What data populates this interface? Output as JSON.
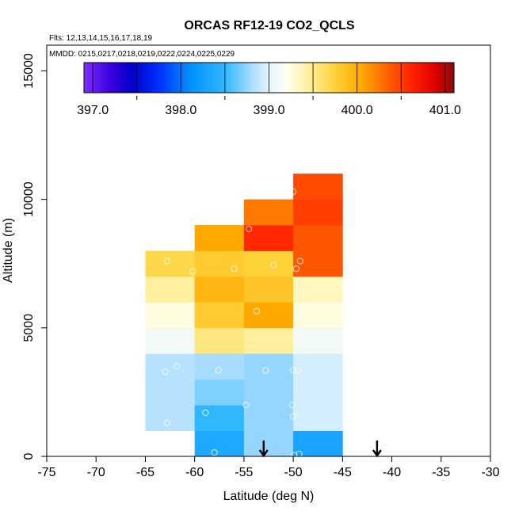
{
  "chart_data": {
    "type": "heatmap",
    "title": "ORCAS RF12-19 CO2_QCLS",
    "flights_label": "Flts: 12,13,14,15,16,17,18,19",
    "dates_label": "MMDD: 0215,0217,0218,0219,0222,0224,0225,0229",
    "xlabel": "Latitude (deg N)",
    "ylabel": "Altitude (m)",
    "xlim": [
      -75,
      -30
    ],
    "ylim": [
      0,
      16000
    ],
    "x_ticks": [
      -75,
      -70,
      -65,
      -60,
      -55,
      -50,
      -45,
      -40,
      -35,
      -30
    ],
    "x_tick_labels": [
      "-75",
      "-70",
      "-65",
      "-60",
      "-55",
      "-50",
      "-45",
      "-40",
      "-35",
      "-30"
    ],
    "y_ticks": [
      0,
      5000,
      10000,
      15000
    ],
    "y_tick_labels": [
      "0",
      "5000",
      "10000",
      "15000"
    ],
    "colorbar": {
      "range": [
        396.9,
        401.1
      ],
      "ticks": [
        397.0,
        398.0,
        399.0,
        400.0,
        401.0
      ],
      "tick_labels": [
        "397.0",
        "398.0",
        "399.0",
        "400.0",
        "401.0"
      ],
      "stops": [
        {
          "v": 396.9,
          "c": "#7f2fff"
        },
        {
          "v": 397.2,
          "c": "#3a00e0"
        },
        {
          "v": 397.45,
          "c": "#0000c8"
        },
        {
          "v": 397.75,
          "c": "#0030ff"
        },
        {
          "v": 398.1,
          "c": "#0090ff"
        },
        {
          "v": 398.5,
          "c": "#30b8ff"
        },
        {
          "v": 398.8,
          "c": "#a8dcff"
        },
        {
          "v": 399.0,
          "c": "#e4f4ff"
        },
        {
          "v": 399.2,
          "c": "#fffff0"
        },
        {
          "v": 399.45,
          "c": "#fff0a0"
        },
        {
          "v": 399.75,
          "c": "#ffd23a"
        },
        {
          "v": 400.05,
          "c": "#ffa800"
        },
        {
          "v": 400.35,
          "c": "#ff6200"
        },
        {
          "v": 400.65,
          "c": "#ff1c00"
        },
        {
          "v": 400.9,
          "c": "#d80000"
        },
        {
          "v": 401.1,
          "c": "#8b0c0c"
        }
      ]
    },
    "lat_bin_width": 5,
    "alt_bin_height": 1000,
    "cells": [
      {
        "lat0": -65,
        "alt0": 1000,
        "value": 398.85
      },
      {
        "lat0": -65,
        "alt0": 2000,
        "value": 398.85
      },
      {
        "lat0": -65,
        "alt0": 3000,
        "value": 398.85
      },
      {
        "lat0": -65,
        "alt0": 4000,
        "value": 399.1
      },
      {
        "lat0": -65,
        "alt0": 5000,
        "value": 399.25
      },
      {
        "lat0": -65,
        "alt0": 6000,
        "value": 399.45
      },
      {
        "lat0": -65,
        "alt0": 7000,
        "value": 399.7
      },
      {
        "lat0": -60,
        "alt0": 0,
        "value": 398.35
      },
      {
        "lat0": -60,
        "alt0": 1000,
        "value": 398.5
      },
      {
        "lat0": -60,
        "alt0": 2000,
        "value": 398.7
      },
      {
        "lat0": -60,
        "alt0": 3000,
        "value": 398.8
      },
      {
        "lat0": -60,
        "alt0": 4000,
        "value": 399.55
      },
      {
        "lat0": -60,
        "alt0": 5000,
        "value": 399.8
      },
      {
        "lat0": -60,
        "alt0": 6000,
        "value": 399.95
      },
      {
        "lat0": -60,
        "alt0": 7000,
        "value": 399.8
      },
      {
        "lat0": -60,
        "alt0": 8000,
        "value": 400.05
      },
      {
        "lat0": -55,
        "alt0": 0,
        "value": 398.75
      },
      {
        "lat0": -55,
        "alt0": 1000,
        "value": 398.75
      },
      {
        "lat0": -55,
        "alt0": 2000,
        "value": 398.75
      },
      {
        "lat0": -55,
        "alt0": 3000,
        "value": 398.75
      },
      {
        "lat0": -55,
        "alt0": 4000,
        "value": 399.45
      },
      {
        "lat0": -55,
        "alt0": 5000,
        "value": 400.05
      },
      {
        "lat0": -55,
        "alt0": 6000,
        "value": 399.85
      },
      {
        "lat0": -55,
        "alt0": 7000,
        "value": 399.75
      },
      {
        "lat0": -55,
        "alt0": 8000,
        "value": 400.6
      },
      {
        "lat0": -55,
        "alt0": 9000,
        "value": 400.25
      },
      {
        "lat0": -50,
        "alt0": 0,
        "value": 398.3
      },
      {
        "lat0": -50,
        "alt0": 1000,
        "value": 398.95
      },
      {
        "lat0": -50,
        "alt0": 2000,
        "value": 398.95
      },
      {
        "lat0": -50,
        "alt0": 3000,
        "value": 398.95
      },
      {
        "lat0": -50,
        "alt0": 4000,
        "value": 399.1
      },
      {
        "lat0": -50,
        "alt0": 5000,
        "value": 399.25
      },
      {
        "lat0": -50,
        "alt0": 6000,
        "value": 399.35
      },
      {
        "lat0": -50,
        "alt0": 7000,
        "value": 400.4
      },
      {
        "lat0": -50,
        "alt0": 8000,
        "value": 400.4
      },
      {
        "lat0": -50,
        "alt0": 9000,
        "value": 400.5
      },
      {
        "lat0": -50,
        "alt0": 10000,
        "value": 400.45
      }
    ],
    "points": [
      {
        "lat": -62.8,
        "alt": 7600
      },
      {
        "lat": -60.2,
        "alt": 7200
      },
      {
        "lat": -56.0,
        "alt": 7300
      },
      {
        "lat": -52.0,
        "alt": 7450
      },
      {
        "lat": -49.7,
        "alt": 7300
      },
      {
        "lat": -49.3,
        "alt": 7600
      },
      {
        "lat": -54.5,
        "alt": 8850
      },
      {
        "lat": -50.0,
        "alt": 10300
      },
      {
        "lat": -49.3,
        "alt": 6350
      },
      {
        "lat": -53.7,
        "alt": 5650
      },
      {
        "lat": -63.0,
        "alt": 3300
      },
      {
        "lat": -61.8,
        "alt": 3500
      },
      {
        "lat": -57.6,
        "alt": 3350
      },
      {
        "lat": -52.8,
        "alt": 3350
      },
      {
        "lat": -50.0,
        "alt": 3350
      },
      {
        "lat": -49.5,
        "alt": 3350
      },
      {
        "lat": -58.9,
        "alt": 1700
      },
      {
        "lat": -54.8,
        "alt": 2000
      },
      {
        "lat": -50.1,
        "alt": 2000
      },
      {
        "lat": -50.0,
        "alt": 1550
      },
      {
        "lat": -62.8,
        "alt": 1300
      },
      {
        "lat": -58.0,
        "alt": 150
      },
      {
        "lat": -49.9,
        "alt": 50
      },
      {
        "lat": -49.4,
        "alt": 100
      }
    ],
    "arrows": [
      {
        "lat": -53.0
      },
      {
        "lat": -41.5
      }
    ]
  }
}
